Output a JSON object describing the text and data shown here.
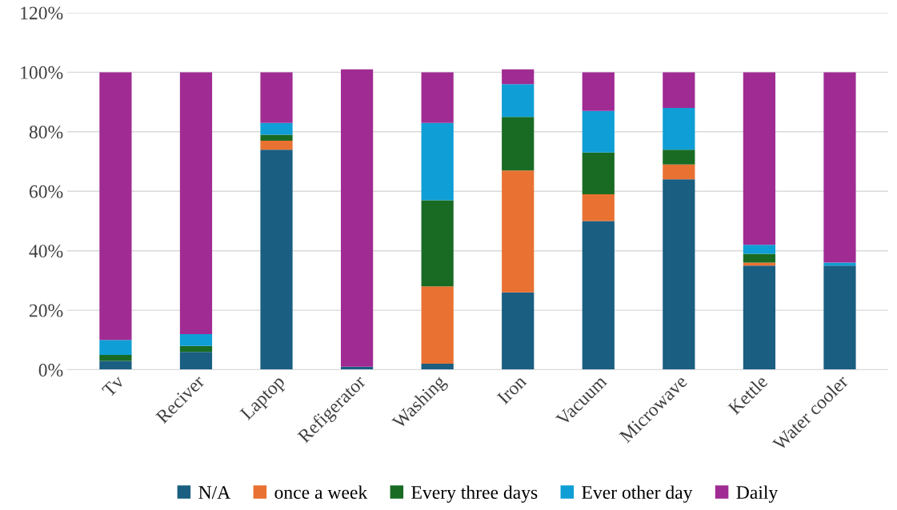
{
  "chart_data": {
    "type": "bar",
    "stacked": true,
    "categories": [
      "Tv",
      "Reciver",
      "Laptop",
      "Refigerator",
      "Washing",
      "Iron",
      "Vacuum",
      "Microwave",
      "Kettle",
      "Water cooler"
    ],
    "series": [
      {
        "name": "N/A",
        "color": "#1a5e82",
        "values": [
          3,
          6,
          74,
          1,
          2,
          26,
          50,
          64,
          35,
          35
        ]
      },
      {
        "name": "once a week",
        "color": "#e97132",
        "values": [
          0,
          0,
          3,
          0,
          26,
          41,
          9,
          5,
          1,
          0
        ]
      },
      {
        "name": "Every three days",
        "color": "#196b24",
        "values": [
          2,
          2,
          2,
          0,
          29,
          18,
          14,
          5,
          3,
          0
        ]
      },
      {
        "name": "Ever other day",
        "color": "#0f9ed5",
        "values": [
          5,
          4,
          4,
          0,
          26,
          11,
          14,
          14,
          3,
          1
        ]
      },
      {
        "name": "Daily",
        "color": "#a02b93",
        "values": [
          90,
          88,
          17,
          100,
          17,
          5,
          13,
          12,
          58,
          64
        ]
      }
    ],
    "ylim": [
      0,
      120
    ],
    "yticks": [
      {
        "value": 0,
        "label": "0%"
      },
      {
        "value": 20,
        "label": "20%"
      },
      {
        "value": 40,
        "label": "40%"
      },
      {
        "value": 60,
        "label": "60%"
      },
      {
        "value": 80,
        "label": "80%"
      },
      {
        "value": 100,
        "label": "100%"
      },
      {
        "value": 120,
        "label": "120%"
      }
    ],
    "grid": "y",
    "legend": "bottom"
  }
}
